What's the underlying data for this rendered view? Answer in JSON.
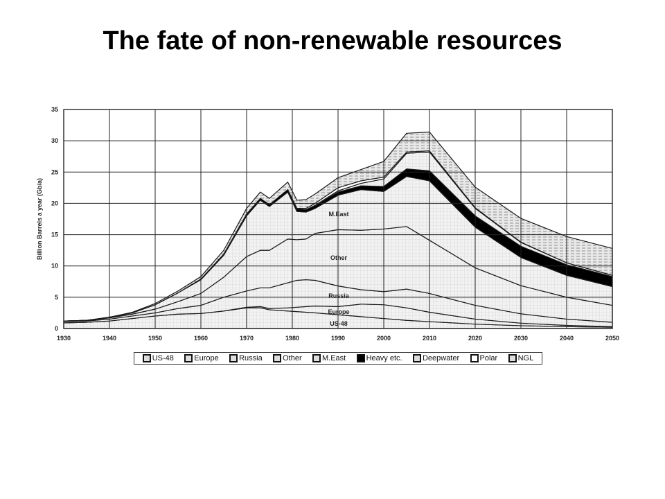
{
  "slide": {
    "title": "The fate of non-renewable resources"
  },
  "chart_data": {
    "type": "area",
    "stacked": true,
    "ylabel": "Billion Barrels a year (Gb/a)",
    "xlabel": "",
    "xlim": [
      1930,
      2050
    ],
    "ylim": [
      0,
      35
    ],
    "x_ticks": [
      1930,
      1940,
      1950,
      1960,
      1970,
      1980,
      1990,
      2000,
      2010,
      2020,
      2030,
      2040,
      2050
    ],
    "y_ticks": [
      0,
      5,
      10,
      15,
      20,
      25,
      30,
      35
    ],
    "grid": true,
    "legend_position": "bottom",
    "x": [
      1930,
      1935,
      1940,
      1945,
      1950,
      1955,
      1960,
      1965,
      1970,
      1973,
      1975,
      1979,
      1981,
      1983,
      1985,
      1990,
      1995,
      2000,
      2005,
      2010,
      2020,
      2030,
      2040,
      2050
    ],
    "series": [
      {
        "name": "US-48",
        "fill": "#e4e4e4",
        "values": [
          0.9,
          1.0,
          1.2,
          1.6,
          2.0,
          2.3,
          2.4,
          2.8,
          3.3,
          3.3,
          3.0,
          2.8,
          2.7,
          2.6,
          2.5,
          2.2,
          1.9,
          1.6,
          1.3,
          1.1,
          0.7,
          0.45,
          0.3,
          0.2
        ]
      },
      {
        "name": "Europe",
        "fill": "#f0f0f0",
        "values": [
          0.0,
          0.0,
          0.0,
          0.0,
          0.0,
          0.0,
          0.0,
          0.0,
          0.1,
          0.2,
          0.2,
          0.5,
          0.7,
          0.9,
          1.1,
          1.3,
          2.0,
          2.2,
          2.0,
          1.5,
          0.8,
          0.4,
          0.2,
          0.1
        ]
      },
      {
        "name": "Russia",
        "fill": "#e8e8e8",
        "values": [
          0.2,
          0.2,
          0.3,
          0.4,
          0.5,
          0.9,
          1.3,
          2.2,
          2.6,
          3.0,
          3.3,
          4.0,
          4.3,
          4.3,
          4.1,
          3.3,
          2.3,
          2.1,
          3.0,
          3.0,
          2.2,
          1.5,
          1.0,
          0.7
        ]
      },
      {
        "name": "Other",
        "fill": "#eeeeee",
        "values": [
          0.1,
          0.1,
          0.2,
          0.3,
          0.6,
          1.1,
          1.9,
          3.2,
          5.5,
          6.0,
          6.0,
          7.0,
          6.5,
          6.5,
          7.5,
          9.0,
          9.5,
          10.0,
          10.0,
          8.5,
          6.0,
          4.5,
          3.5,
          2.7
        ]
      },
      {
        "name": "M.East",
        "fill": "#e6e6e6",
        "values": [
          0.0,
          0.0,
          0.1,
          0.2,
          0.7,
          1.4,
          2.2,
          3.5,
          6.5,
          8.0,
          7.0,
          7.5,
          4.5,
          4.3,
          4.0,
          5.5,
          6.5,
          6.0,
          8.0,
          9.5,
          6.5,
          4.5,
          3.5,
          3.0
        ]
      },
      {
        "name": "Heavy etc.",
        "fill": "#000000",
        "values": [
          0.0,
          0.0,
          0.0,
          0.0,
          0.0,
          0.0,
          0.1,
          0.2,
          0.3,
          0.3,
          0.3,
          0.4,
          0.4,
          0.4,
          0.4,
          0.5,
          0.6,
          0.8,
          1.2,
          1.6,
          1.8,
          1.8,
          1.7,
          1.6
        ]
      },
      {
        "name": "Deepwater",
        "fill": "#cfcfcf",
        "values": [
          0.0,
          0.0,
          0.0,
          0.0,
          0.0,
          0.0,
          0.0,
          0.0,
          0.0,
          0.0,
          0.0,
          0.0,
          0.0,
          0.0,
          0.1,
          0.2,
          0.4,
          1.2,
          2.5,
          3.0,
          1.2,
          0.6,
          0.3,
          0.2
        ]
      },
      {
        "name": "Polar",
        "fill": "#ffffff",
        "values": [
          0.0,
          0.0,
          0.0,
          0.0,
          0.0,
          0.0,
          0.0,
          0.0,
          0.0,
          0.0,
          0.0,
          0.0,
          0.1,
          0.2,
          0.3,
          0.5,
          0.4,
          0.3,
          0.2,
          0.2,
          0.1,
          0.05,
          0.0,
          0.0
        ]
      },
      {
        "name": "NGL",
        "fill": "#d6d6d6",
        "values": [
          0.0,
          0.0,
          0.0,
          0.1,
          0.2,
          0.3,
          0.4,
          0.6,
          0.9,
          1.0,
          1.0,
          1.2,
          1.3,
          1.4,
          1.5,
          1.6,
          1.8,
          2.5,
          3.0,
          3.0,
          3.3,
          3.8,
          4.2,
          4.3
        ]
      }
    ],
    "annotations": [
      "M.East",
      "Other",
      "Russia",
      "Europe",
      "US-48"
    ]
  },
  "legend": {
    "items": [
      "US-48",
      "Europe",
      "Russia",
      "Other",
      "M.East",
      "Heavy etc.",
      "Deepwater",
      "Polar",
      "NGL"
    ]
  }
}
